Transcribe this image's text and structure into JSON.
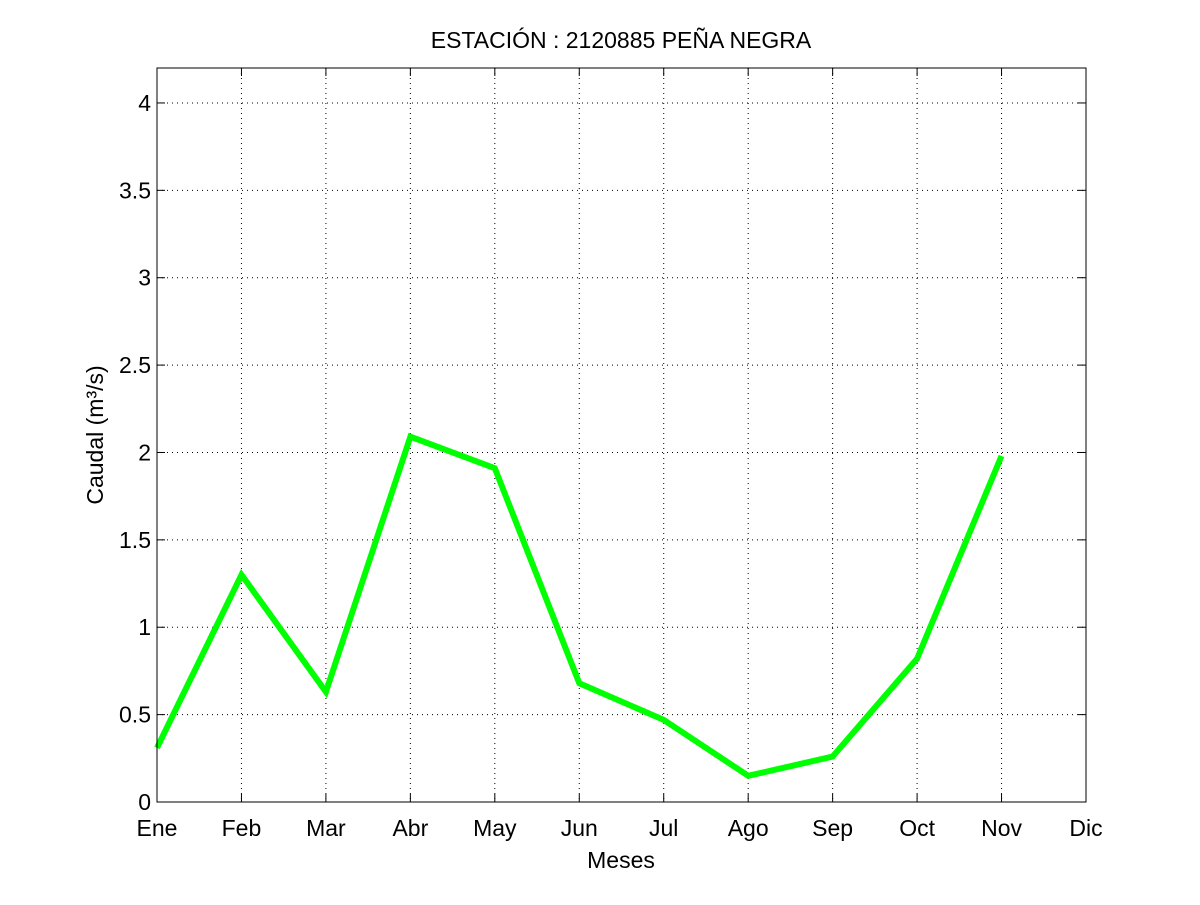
{
  "chart_data": {
    "type": "line",
    "title": "ESTACIÓN :  2120885  PEÑA NEGRA",
    "xlabel": "Meses",
    "ylabel": "Caudal (m³/s)",
    "categories": [
      "Ene",
      "Feb",
      "Mar",
      "Abr",
      "May",
      "Jun",
      "Jul",
      "Ago",
      "Sep",
      "Oct",
      "Nov",
      "Dic"
    ],
    "values": [
      0.31,
      1.3,
      0.63,
      2.09,
      1.91,
      0.68,
      0.47,
      0.15,
      0.26,
      0.82,
      1.98,
      null
    ],
    "ylim": [
      0,
      4.2
    ],
    "yticks": [
      0,
      0.5,
      1,
      1.5,
      2,
      2.5,
      3,
      3.5,
      4
    ],
    "ytick_labels": [
      "0",
      "0.5",
      "1",
      "1.5",
      "2",
      "2.5",
      "3",
      "3.5",
      "4"
    ],
    "grid": true,
    "line_color": "#00ff00"
  }
}
